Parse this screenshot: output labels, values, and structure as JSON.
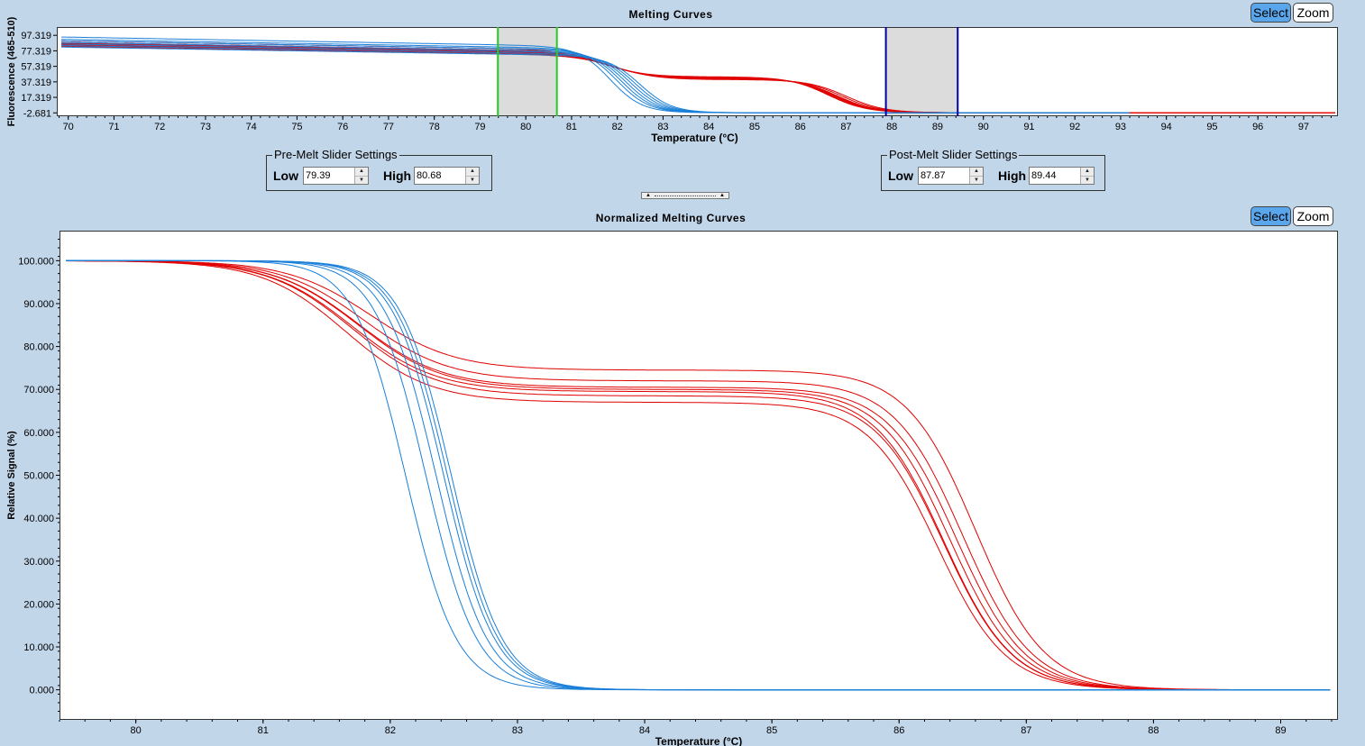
{
  "top_chart": {
    "title": "Melting Curves",
    "select_label": "Select",
    "zoom_label": "Zoom"
  },
  "pre_melt": {
    "legend": "Pre-Melt Slider Settings",
    "low_label": "Low",
    "high_label": "High",
    "low": "79.39",
    "high": "80.68"
  },
  "post_melt": {
    "legend": "Post-Melt Slider Settings",
    "low_label": "Low",
    "high_label": "High",
    "low": "87.87",
    "high": "89.44"
  },
  "bottom_chart": {
    "title": "Normalized Melting Curves",
    "select_label": "Select",
    "zoom_label": "Zoom"
  },
  "colors": {
    "red": "#e00000",
    "blue": "#1a7fd8",
    "green": "#22cc22",
    "navy": "#0000a0",
    "selection": "#dcdcdc"
  },
  "chart_data": [
    {
      "type": "line",
      "title": "Melting Curves",
      "xlabel": "Temperature (°C)",
      "ylabel": "Fluorescence (465-510)",
      "xlim": [
        69.75,
        97.75
      ],
      "ylim": [
        -7,
        108
      ],
      "x_ticks": [
        70,
        71,
        72,
        73,
        74,
        75,
        76,
        77,
        78,
        79,
        80,
        81,
        82,
        83,
        84,
        85,
        86,
        87,
        88,
        89,
        90,
        91,
        92,
        93,
        94,
        95,
        96,
        97
      ],
      "y_ticks": [
        -2.681,
        17.319,
        37.319,
        57.319,
        77.319,
        97.319
      ],
      "y_tick_labels": [
        "-2.681",
        "17.319",
        "37.319",
        "57.319",
        "77.319",
        "97.319"
      ],
      "pre_melt_range": [
        79.39,
        80.68
      ],
      "post_melt_range": [
        87.87,
        89.44
      ],
      "series_groups": [
        {
          "color": "red",
          "curves": [
            {
              "a": 90,
              "b": -1.0,
              "tm1": 81.7,
              "w1": 0.45,
              "f1": 0.31,
              "tm2": 86.6,
              "w2": 0.42,
              "base": 0
            },
            {
              "a": 88,
              "b": -1.0,
              "tm1": 81.75,
              "w1": 0.45,
              "f1": 0.3,
              "tm2": 86.65,
              "w2": 0.42,
              "base": 0
            },
            {
              "a": 87,
              "b": -1.0,
              "tm1": 81.8,
              "w1": 0.45,
              "f1": 0.29,
              "tm2": 86.7,
              "w2": 0.42,
              "base": 0
            },
            {
              "a": 86,
              "b": -1.0,
              "tm1": 81.85,
              "w1": 0.45,
              "f1": 0.28,
              "tm2": 86.75,
              "w2": 0.42,
              "base": 0
            },
            {
              "a": 85,
              "b": -1.0,
              "tm1": 81.9,
              "w1": 0.45,
              "f1": 0.27,
              "tm2": 86.8,
              "w2": 0.42,
              "base": 0
            },
            {
              "a": 84,
              "b": -1.0,
              "tm1": 81.95,
              "w1": 0.45,
              "f1": 0.26,
              "tm2": 86.9,
              "w2": 0.42,
              "base": 0
            },
            {
              "a": 83,
              "b": -1.0,
              "tm1": 82.0,
              "w1": 0.45,
              "f1": 0.25,
              "tm2": 87.0,
              "w2": 0.42,
              "base": 0
            }
          ]
        },
        {
          "color": "blue",
          "curves": [
            {
              "a": 95,
              "b": -1.05,
              "tm1": 81.85,
              "w1": 0.35,
              "base": 0
            },
            {
              "a": 92,
              "b": -1.02,
              "tm1": 82.0,
              "w1": 0.35,
              "base": 0
            },
            {
              "a": 90,
              "b": -1.0,
              "tm1": 82.1,
              "w1": 0.35,
              "base": 0
            },
            {
              "a": 88,
              "b": -1.0,
              "tm1": 82.2,
              "w1": 0.35,
              "base": 0
            },
            {
              "a": 86,
              "b": -0.98,
              "tm1": 82.3,
              "w1": 0.35,
              "base": 0
            },
            {
              "a": 84,
              "b": -0.98,
              "tm1": 82.4,
              "w1": 0.35,
              "base": 0
            },
            {
              "a": 82,
              "b": -0.95,
              "tm1": 82.5,
              "w1": 0.35,
              "base": 0
            }
          ]
        }
      ]
    },
    {
      "type": "line",
      "title": "Normalized Melting Curves",
      "xlabel": "Temperature (°C)",
      "ylabel": "Relative Signal (%)",
      "xlim": [
        79.4,
        89.45
      ],
      "ylim": [
        -7,
        107
      ],
      "x_ticks": [
        80,
        81,
        82,
        83,
        84,
        85,
        86,
        87,
        88,
        89
      ],
      "y_ticks": [
        0,
        10,
        20,
        30,
        40,
        50,
        60,
        70,
        80,
        90,
        100
      ],
      "y_tick_labels": [
        "0.000",
        "10.000",
        "20.000",
        "30.000",
        "40.000",
        "50.000",
        "60.000",
        "70.000",
        "80.000",
        "90.000",
        "100.000"
      ],
      "series_groups": [
        {
          "color": "red",
          "curves": [
            {
              "plateau": 74.5,
              "tm1": 81.85,
              "w1": 0.33,
              "tm2": 86.6,
              "w2": 0.27
            },
            {
              "plateau": 72.0,
              "tm1": 81.8,
              "w1": 0.33,
              "tm2": 86.5,
              "w2": 0.27
            },
            {
              "plateau": 70.5,
              "tm1": 81.75,
              "w1": 0.33,
              "tm2": 86.45,
              "w2": 0.27
            },
            {
              "plateau": 70.0,
              "tm1": 81.75,
              "w1": 0.33,
              "tm2": 86.4,
              "w2": 0.27
            },
            {
              "plateau": 69.5,
              "tm1": 81.7,
              "w1": 0.33,
              "tm2": 86.35,
              "w2": 0.27
            },
            {
              "plateau": 68.5,
              "tm1": 81.7,
              "w1": 0.33,
              "tm2": 86.35,
              "w2": 0.27
            },
            {
              "plateau": 67.0,
              "tm1": 81.65,
              "w1": 0.33,
              "tm2": 86.3,
              "w2": 0.27
            }
          ]
        },
        {
          "color": "blue",
          "curves": [
            {
              "tm1": 82.12,
              "w1": 0.2
            },
            {
              "tm1": 82.28,
              "w1": 0.2
            },
            {
              "tm1": 82.36,
              "w1": 0.2
            },
            {
              "tm1": 82.42,
              "w1": 0.2
            },
            {
              "tm1": 82.45,
              "w1": 0.2
            },
            {
              "tm1": 82.48,
              "w1": 0.2
            }
          ]
        }
      ]
    }
  ]
}
